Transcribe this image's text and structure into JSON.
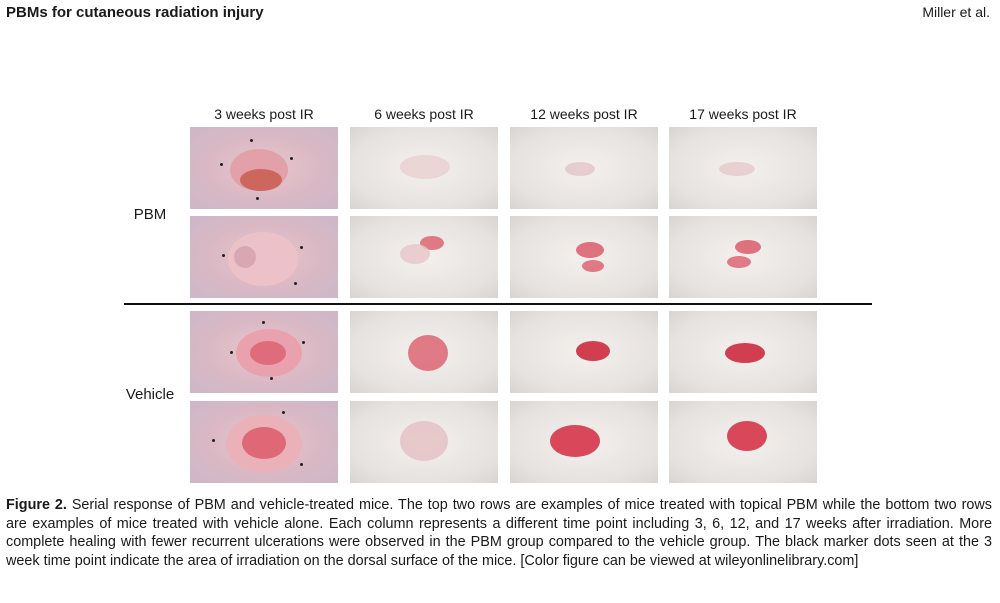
{
  "header": {
    "title": "PBMs for cutaneous radiation injury",
    "authors": "Miller et al."
  },
  "figure": {
    "columns": [
      "3 weeks post IR",
      "6 weeks post IR",
      "12 weeks post IR",
      "17 weeks post IR"
    ],
    "rows": [
      "PBM",
      "Vehicle"
    ]
  },
  "caption": {
    "label": "Figure 2.",
    "text": " Serial response of PBM and vehicle-treated mice. The top two rows are examples of mice treated with topical PBM while the bottom two rows are examples of mice treated with vehicle alone. Each column represents a different time point including 3, 6, 12, and 17 weeks after irradiation. More complete healing with fewer recurrent ulcerations were observed in the PBM group compared to the vehicle group. The black marker dots seen at the 3 week time point indicate the area of irradiation on the dorsal surface of the mice. [Color figure can be viewed at wileyonlinelibrary.com]"
  },
  "colors": {
    "wound": "#d9485a",
    "skin": "#e8c7cc",
    "fur": "#ece9e6"
  }
}
